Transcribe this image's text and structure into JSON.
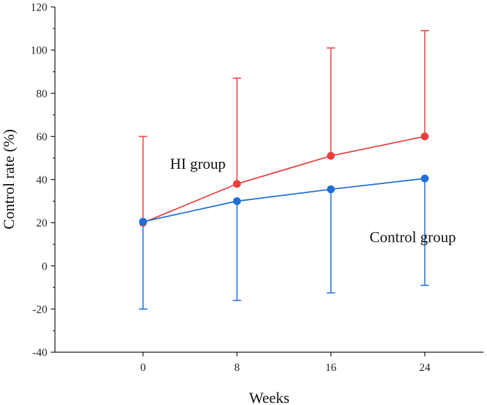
{
  "chart_data": {
    "type": "line",
    "title": "",
    "xlabel": "Weeks",
    "ylabel": "Control rate (%)",
    "x": [
      0,
      8,
      16,
      24
    ],
    "x_tick_labels": [
      "0",
      "8",
      "16",
      "24"
    ],
    "xlim": [
      -7.5,
      29
    ],
    "ylim": [
      -40,
      120
    ],
    "y_ticks": [
      -40,
      -20,
      0,
      20,
      40,
      60,
      80,
      100,
      120
    ],
    "y_tick_labels": [
      "-40",
      "-20",
      "0",
      "20",
      "40",
      "60",
      "80",
      "100",
      "120"
    ],
    "grid": false,
    "series": [
      {
        "name": "HI group",
        "color": "#e8403f",
        "values": [
          20,
          38,
          51,
          60
        ],
        "error_upper": [
          60,
          87,
          101,
          109
        ],
        "error_direction": "up"
      },
      {
        "name": "Control group",
        "color": "#1f6fd6",
        "values": [
          20.5,
          30,
          35.5,
          40.5
        ],
        "error_lower": [
          -20,
          -16,
          -12.5,
          -9
        ],
        "error_direction": "down"
      }
    ],
    "annotations": [
      {
        "text": "HI group",
        "series": "HI group",
        "x": 2.3,
        "y": 45
      },
      {
        "text": "Control group",
        "series": "Control group",
        "x": 19.3,
        "y": 11
      }
    ]
  }
}
